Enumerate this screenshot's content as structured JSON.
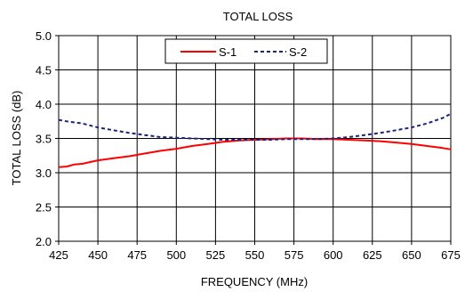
{
  "chart_data": {
    "type": "line",
    "title": "TOTAL LOSS",
    "xlabel": "FREQUENCY (MHz)",
    "ylabel": "TOTAL LOSS (dB)",
    "xlim": [
      425,
      675
    ],
    "ylim": [
      2.0,
      5.0
    ],
    "x_ticks": [
      425,
      450,
      475,
      500,
      525,
      550,
      575,
      600,
      625,
      650,
      675
    ],
    "y_ticks": [
      "2.0",
      "2.5",
      "3.0",
      "3.5",
      "4.0",
      "4.5",
      "5.0"
    ],
    "grid": true,
    "legend_position": "top-center",
    "series": [
      {
        "name": "S-1",
        "color": "#ff0000",
        "style": "solid",
        "x": [
          425,
          430,
          435,
          440,
          450,
          460,
          470,
          480,
          490,
          500,
          510,
          520,
          530,
          540,
          550,
          560,
          570,
          580,
          590,
          600,
          610,
          620,
          630,
          640,
          650,
          660,
          670,
          675
        ],
        "y": [
          3.08,
          3.09,
          3.12,
          3.13,
          3.18,
          3.21,
          3.24,
          3.28,
          3.32,
          3.35,
          3.39,
          3.42,
          3.45,
          3.47,
          3.48,
          3.49,
          3.5,
          3.5,
          3.49,
          3.49,
          3.48,
          3.47,
          3.46,
          3.44,
          3.42,
          3.39,
          3.36,
          3.34
        ]
      },
      {
        "name": "S-2",
        "color": "#1a237e",
        "style": "dashed",
        "x": [
          425,
          430,
          440,
          450,
          460,
          470,
          480,
          490,
          500,
          510,
          520,
          530,
          540,
          550,
          560,
          570,
          580,
          590,
          600,
          610,
          620,
          630,
          640,
          650,
          660,
          670,
          675
        ],
        "y": [
          3.77,
          3.75,
          3.72,
          3.66,
          3.62,
          3.58,
          3.55,
          3.52,
          3.51,
          3.5,
          3.49,
          3.48,
          3.48,
          3.48,
          3.48,
          3.49,
          3.49,
          3.49,
          3.5,
          3.52,
          3.55,
          3.58,
          3.62,
          3.66,
          3.72,
          3.8,
          3.86
        ]
      }
    ]
  }
}
